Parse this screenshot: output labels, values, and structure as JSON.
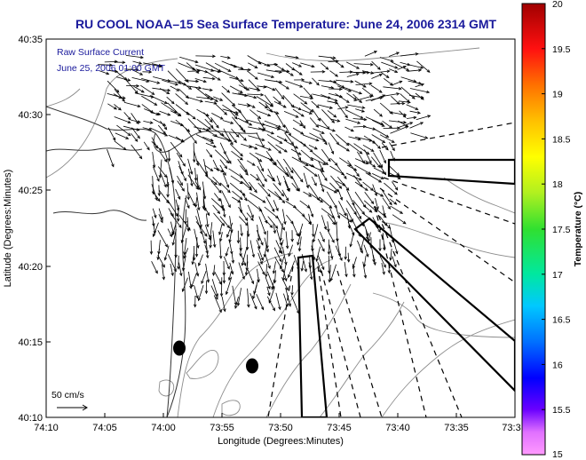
{
  "title": "RU COOL  NOAA–15  Sea Surface Temperature:  June 24, 2006 2314 GMT",
  "annotations": {
    "line1": "Raw Surface Current",
    "line2": "June 25, 2006 01:00 GMT"
  },
  "scale_label": "50 cm/s",
  "xlabel": "Longitude (Degrees:Minutes)",
  "ylabel": "Latitude (Degrees:Minutes)",
  "colorbar_label": "Temperature (°C)",
  "x_ticks": [
    "74:10",
    "74:05",
    "74:00",
    "73:55",
    "73:50",
    "73:45",
    "73:40",
    "73:35",
    "73:3"
  ],
  "y_ticks": [
    "40:35",
    "40:30",
    "40:25",
    "40:20",
    "40:15",
    "40:10"
  ],
  "colorbar_ticks": [
    "20",
    "19.5",
    "19",
    "18.5",
    "18",
    "17.5",
    "17",
    "16.5",
    "16",
    "15.5",
    "15"
  ],
  "colors": {
    "title": "#1a1a9c",
    "annotation": "#1a1a9c",
    "vectors": "#000000",
    "contours": "#808080"
  }
}
